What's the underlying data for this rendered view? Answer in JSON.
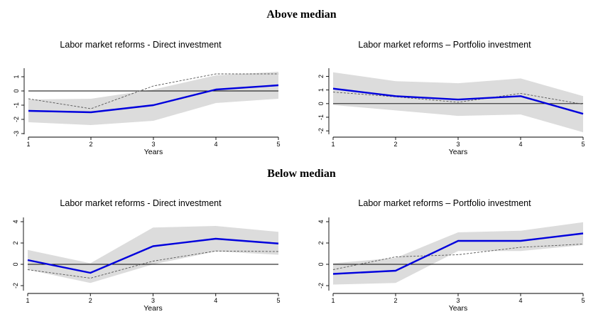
{
  "headings": {
    "above": "Above median",
    "below": "Below median"
  },
  "colors": {
    "main_line": "#0000dd",
    "band": "#dcdcdc",
    "dashed_line": "#555555",
    "zero_line": "#000000"
  },
  "chart_data": [
    {
      "type": "line",
      "title": "Labor market reforms - Direct investment",
      "xlabel": "Years",
      "ylabel": "",
      "x": [
        1,
        2,
        3,
        4,
        5
      ],
      "xticks": [
        "1",
        "2",
        "3",
        "4",
        "5"
      ],
      "ylim": [
        -3,
        1.6
      ],
      "yticks": [
        -3,
        -2,
        -1,
        0,
        1
      ],
      "series": [
        {
          "role": "estimate",
          "values": [
            -1.4,
            -1.5,
            -1.0,
            0.1,
            0.4
          ]
        },
        {
          "role": "ci_lower",
          "values": [
            -2.2,
            -2.4,
            -2.1,
            -0.85,
            -0.55
          ]
        },
        {
          "role": "ci_upper",
          "values": [
            -0.6,
            -0.55,
            0.1,
            1.1,
            1.35
          ]
        },
        {
          "role": "dashed",
          "values": [
            -0.55,
            -1.25,
            0.35,
            1.2,
            1.2
          ]
        }
      ]
    },
    {
      "type": "line",
      "title": "Labor market reforms – Portfolio investment",
      "xlabel": "Years",
      "ylabel": "",
      "x": [
        1,
        2,
        3,
        4,
        5
      ],
      "xticks": [
        "1",
        "2",
        "3",
        "4",
        "5"
      ],
      "ylim": [
        -2.2,
        2.6
      ],
      "yticks": [
        -2,
        -1,
        0,
        1,
        2
      ],
      "series": [
        {
          "role": "estimate",
          "values": [
            1.1,
            0.55,
            0.3,
            0.55,
            -0.75
          ]
        },
        {
          "role": "ci_lower",
          "values": [
            -0.1,
            -0.5,
            -0.9,
            -0.8,
            -2.1
          ]
        },
        {
          "role": "ci_upper",
          "values": [
            2.3,
            1.65,
            1.5,
            1.85,
            0.55
          ]
        },
        {
          "role": "dashed",
          "values": [
            0.85,
            0.5,
            0.1,
            0.75,
            -0.05
          ]
        }
      ]
    },
    {
      "type": "line",
      "title": "Labor market reforms - Direct investment",
      "xlabel": "Years",
      "ylabel": "",
      "x": [
        1,
        2,
        3,
        4,
        5
      ],
      "xticks": [
        "1",
        "2",
        "3",
        "4",
        "5"
      ],
      "ylim": [
        -2.4,
        4.4
      ],
      "yticks": [
        -2,
        0,
        2,
        4
      ],
      "series": [
        {
          "role": "estimate",
          "values": [
            0.4,
            -0.8,
            1.7,
            2.4,
            1.95
          ]
        },
        {
          "role": "ci_lower",
          "values": [
            -0.5,
            -1.75,
            0.0,
            1.2,
            0.9
          ]
        },
        {
          "role": "ci_upper",
          "values": [
            1.35,
            0.1,
            3.45,
            3.6,
            3.05
          ]
        },
        {
          "role": "dashed",
          "values": [
            -0.5,
            -1.3,
            0.3,
            1.25,
            1.2
          ]
        }
      ]
    },
    {
      "type": "line",
      "title": "Labor market reforms – Portfolio investment",
      "xlabel": "Years",
      "ylabel": "",
      "x": [
        1,
        2,
        3,
        4,
        5
      ],
      "xticks": [
        "1",
        "2",
        "3",
        "4",
        "5"
      ],
      "ylim": [
        -2.4,
        4.4
      ],
      "yticks": [
        -2,
        0,
        2,
        4
      ],
      "series": [
        {
          "role": "estimate",
          "values": [
            -0.9,
            -0.6,
            2.2,
            2.2,
            2.9
          ]
        },
        {
          "role": "ci_lower",
          "values": [
            -1.9,
            -1.75,
            1.25,
            1.25,
            1.8
          ]
        },
        {
          "role": "ci_upper",
          "values": [
            0.1,
            0.6,
            3.0,
            3.15,
            3.95
          ]
        },
        {
          "role": "dashed",
          "values": [
            -0.5,
            0.7,
            0.9,
            1.6,
            1.9
          ]
        }
      ]
    }
  ]
}
